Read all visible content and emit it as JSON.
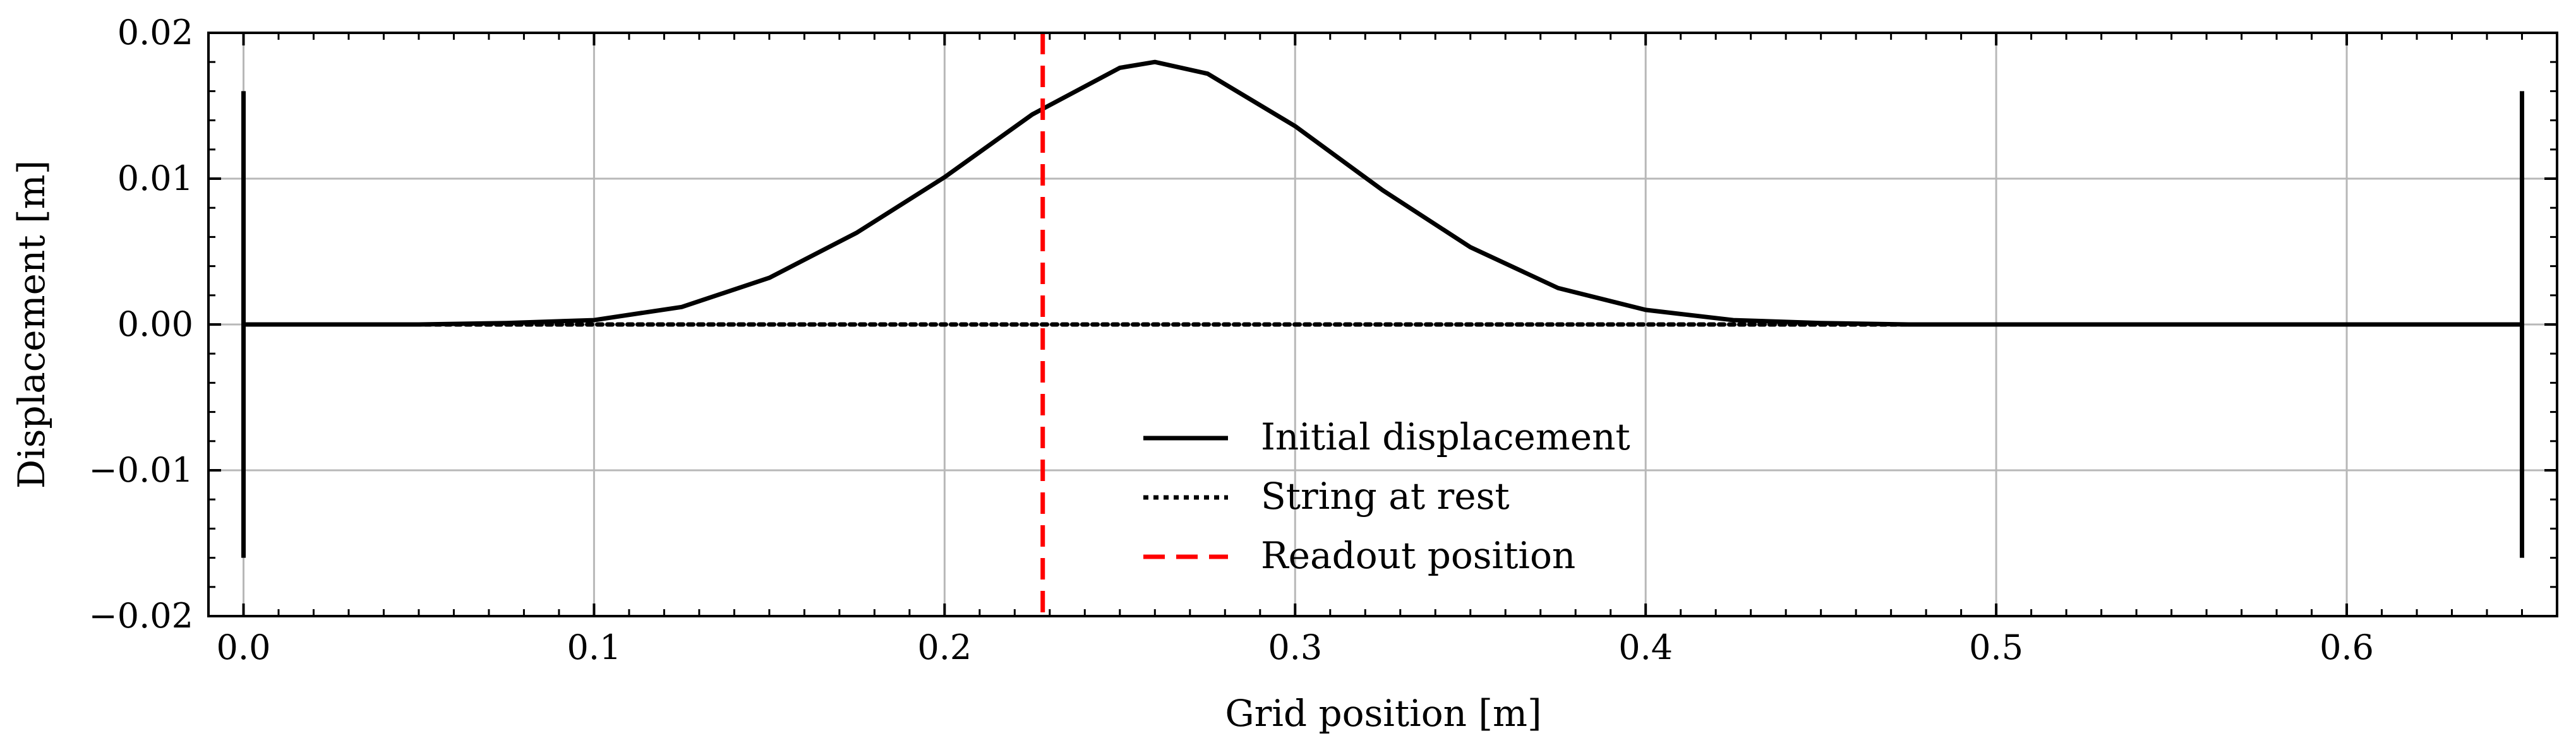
{
  "chart_data": {
    "type": "line",
    "xlabel": "Grid position [m]",
    "ylabel": "Displacement [m]",
    "xlim": [
      -0.01,
      0.66
    ],
    "ylim": [
      -0.02,
      0.02
    ],
    "x_ticks": [
      0.0,
      0.1,
      0.2,
      0.3,
      0.4,
      0.5,
      0.6
    ],
    "x_tick_labels": [
      "0.0",
      "0.1",
      "0.2",
      "0.3",
      "0.4",
      "0.5",
      "0.6"
    ],
    "y_ticks": [
      0.02,
      0.01,
      0.0,
      -0.01,
      -0.02
    ],
    "y_tick_labels": [
      "0.02",
      "0.01",
      "0.00",
      "−0.01",
      "−0.02"
    ],
    "grid": true,
    "legend_position": "lower-center",
    "series": [
      {
        "name": "Initial displacement",
        "style": "solid",
        "color": "#000000",
        "x": [
          0.0,
          0.025,
          0.05,
          0.075,
          0.1,
          0.125,
          0.15,
          0.175,
          0.2,
          0.225,
          0.25,
          0.26,
          0.275,
          0.3,
          0.325,
          0.35,
          0.375,
          0.4,
          0.425,
          0.45,
          0.475,
          0.5,
          0.55,
          0.6,
          0.65
        ],
        "y": [
          0.0,
          0.0,
          0.0,
          0.0001,
          0.0003,
          0.0012,
          0.0032,
          0.0063,
          0.0101,
          0.0144,
          0.0176,
          0.018,
          0.0172,
          0.0136,
          0.0092,
          0.0053,
          0.0025,
          0.001,
          0.0003,
          0.0001,
          0.0,
          0.0,
          0.0,
          0.0,
          0.0
        ]
      },
      {
        "name": "String at rest",
        "style": "dotted",
        "color": "#000000",
        "x": [
          0.0,
          0.65
        ],
        "y": [
          0.0,
          0.0
        ]
      },
      {
        "name": "Readout position",
        "style": "dashed",
        "color": "#ff0000",
        "vertical_x": 0.228
      }
    ],
    "boundaries": {
      "x": [
        0.0,
        0.65
      ],
      "y_range": [
        -0.016,
        0.016
      ]
    }
  }
}
